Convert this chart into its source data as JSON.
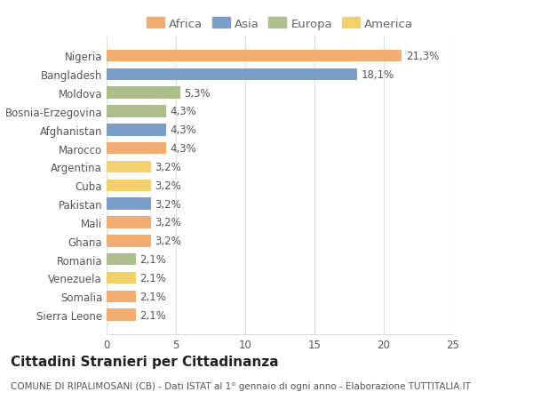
{
  "countries": [
    "Nigeria",
    "Bangladesh",
    "Moldova",
    "Bosnia-Erzegovina",
    "Afghanistan",
    "Marocco",
    "Argentina",
    "Cuba",
    "Pakistan",
    "Mali",
    "Ghana",
    "Romania",
    "Venezuela",
    "Somalia",
    "Sierra Leone"
  ],
  "values": [
    21.3,
    18.1,
    5.3,
    4.3,
    4.3,
    4.3,
    3.2,
    3.2,
    3.2,
    3.2,
    3.2,
    2.1,
    2.1,
    2.1,
    2.1
  ],
  "labels": [
    "21,3%",
    "18,1%",
    "5,3%",
    "4,3%",
    "4,3%",
    "4,3%",
    "3,2%",
    "3,2%",
    "3,2%",
    "3,2%",
    "3,2%",
    "2,1%",
    "2,1%",
    "2,1%",
    "2,1%"
  ],
  "continents": [
    "Africa",
    "Asia",
    "Europa",
    "Europa",
    "Asia",
    "Africa",
    "America",
    "America",
    "Asia",
    "Africa",
    "Africa",
    "Europa",
    "America",
    "Africa",
    "Africa"
  ],
  "colors": {
    "Africa": "#F2AE72",
    "Asia": "#7B9EC9",
    "Europa": "#ABBE8C",
    "America": "#F2D06B"
  },
  "legend_order": [
    "Africa",
    "Asia",
    "Europa",
    "America"
  ],
  "title": "Cittadini Stranieri per Cittadinanza",
  "subtitle": "COMUNE DI RIPALIMOSANI (CB) - Dati ISTAT al 1° gennaio di ogni anno - Elaborazione TUTTITALIA.IT",
  "xlim": [
    0,
    25
  ],
  "xticks": [
    0,
    5,
    10,
    15,
    20,
    25
  ],
  "background_color": "#ffffff",
  "grid_color": "#e0e0e0",
  "bar_height": 0.65,
  "label_fontsize": 8.5,
  "title_fontsize": 11,
  "subtitle_fontsize": 7.5,
  "tick_fontsize": 8.5,
  "legend_fontsize": 9.5
}
